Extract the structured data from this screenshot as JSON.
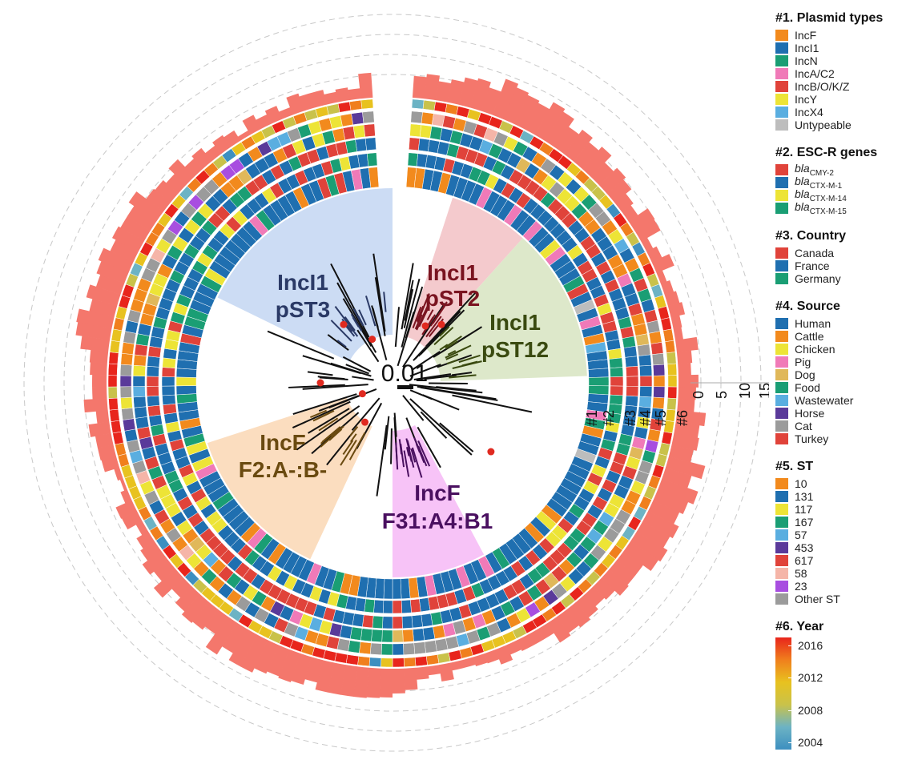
{
  "scale_bar": "0.01",
  "ring_labels": [
    "#1",
    "#2",
    "#3",
    "#4",
    "#5",
    "#6"
  ],
  "histogram_axis": [
    "0",
    "5",
    "10",
    "15"
  ],
  "clades": {
    "incI1_pst3": {
      "line1": "IncI1",
      "line2": "pST3",
      "color": "#c7d8f3",
      "text_color": "#2b3a66"
    },
    "incI1_pst2": {
      "line1": "IncI1",
      "line2": "pST2",
      "color": "#f3c4c8",
      "text_color": "#7a1420"
    },
    "incI1_pst12": {
      "line1": "IncI1",
      "line2": "pST12",
      "color": "#d9e6c4",
      "text_color": "#3a4a10"
    },
    "incF_f2": {
      "line1": "IncF",
      "line2": "F2:A-:B-",
      "color": "#fbd9b8",
      "text_color": "#6a4a10"
    },
    "incF_f31": {
      "line1": "IncF",
      "line2": "F31:A4:B1",
      "color": "#f6bdf6",
      "text_color": "#4a1060"
    }
  },
  "legend": {
    "plasmid_types": {
      "title": "#1. Plasmid types",
      "items": [
        {
          "label": "IncF",
          "color": "#f28a1d"
        },
        {
          "label": "IncI1",
          "color": "#1f6fb0"
        },
        {
          "label": "IncN",
          "color": "#1a9e74"
        },
        {
          "label": "IncA/C2",
          "color": "#f07ab8"
        },
        {
          "label": "IncB/O/K/Z",
          "color": "#e0433a"
        },
        {
          "label": "IncY",
          "color": "#ede436"
        },
        {
          "label": "IncX4",
          "color": "#5aaee0"
        },
        {
          "label": "Untypeable",
          "color": "#bdbdbd"
        }
      ]
    },
    "escr_genes": {
      "title": "#2. ESC-R genes",
      "items": [
        {
          "prefix": "bla",
          "sub": "CMY-2",
          "color": "#e0433a"
        },
        {
          "prefix": "bla",
          "sub": "CTX-M-1",
          "color": "#1f6fb0"
        },
        {
          "prefix": "bla",
          "sub": "CTX-M-14",
          "color": "#ede436"
        },
        {
          "prefix": "bla",
          "sub": "CTX-M-15",
          "color": "#1a9e74"
        }
      ]
    },
    "country": {
      "title": "#3. Country",
      "items": [
        {
          "label": "Canada",
          "color": "#e0433a"
        },
        {
          "label": "France",
          "color": "#1f6fb0"
        },
        {
          "label": "Germany",
          "color": "#1a9e74"
        }
      ]
    },
    "source": {
      "title": "#4. Source",
      "items": [
        {
          "label": "Human",
          "color": "#1f6fb0"
        },
        {
          "label": "Cattle",
          "color": "#f28a1d"
        },
        {
          "label": "Chicken",
          "color": "#ede436"
        },
        {
          "label": "Pig",
          "color": "#f07ab8"
        },
        {
          "label": "Dog",
          "color": "#e0b85a"
        },
        {
          "label": "Food",
          "color": "#1a9e74"
        },
        {
          "label": "Wastewater",
          "color": "#5aaee0"
        },
        {
          "label": "Horse",
          "color": "#5a3a9a"
        },
        {
          "label": "Cat",
          "color": "#9b9b9b"
        },
        {
          "label": "Turkey",
          "color": "#e0433a"
        }
      ]
    },
    "st": {
      "title": "#5. ST",
      "items": [
        {
          "label": "10",
          "color": "#f28a1d"
        },
        {
          "label": "131",
          "color": "#1f6fb0"
        },
        {
          "label": "117",
          "color": "#ede436"
        },
        {
          "label": "167",
          "color": "#1a9e74"
        },
        {
          "label": "57",
          "color": "#5aaee0"
        },
        {
          "label": "453",
          "color": "#5a3a9a"
        },
        {
          "label": "617",
          "color": "#e0433a"
        },
        {
          "label": "58",
          "color": "#f5b5a8"
        },
        {
          "label": "23",
          "color": "#a84ee0"
        },
        {
          "label": "Other ST",
          "color": "#9b9b9b"
        }
      ]
    },
    "year": {
      "title": "#6. Year",
      "ticks": [
        "2016",
        "2012",
        "2008",
        "2004"
      ]
    }
  },
  "colors": {
    "histogram": "#f4776c",
    "dashed": "#c8c8c8",
    "branch": "#111111",
    "node": "#e02a20",
    "year_gradient": [
      "#e8251c",
      "#f07f1d",
      "#e8c21f",
      "#c9c24a",
      "#6cb3c4",
      "#3d8fc0"
    ]
  }
}
